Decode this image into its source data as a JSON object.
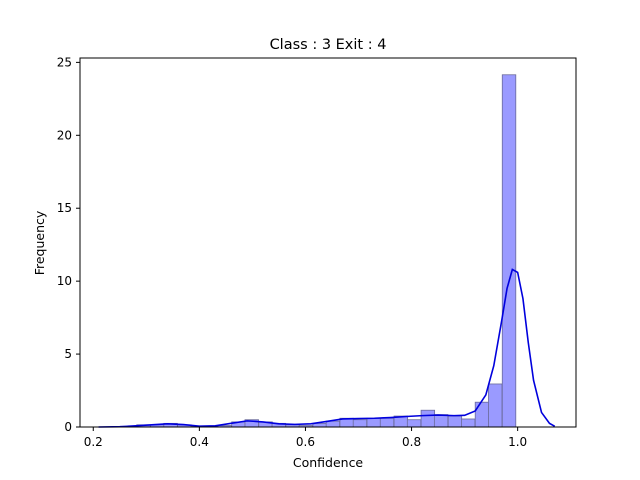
{
  "chart_data": {
    "type": "histogram",
    "title": "Class : 3 Exit : 4",
    "xlabel": "Confidence",
    "ylabel": "Frequency",
    "xlim": [
      0.175,
      1.11
    ],
    "ylim": [
      0,
      25.3
    ],
    "xticks": [
      0.2,
      0.4,
      0.6,
      0.8,
      1.0
    ],
    "xtick_labels": [
      "0.2",
      "0.4",
      "0.6",
      "0.8",
      "1.0"
    ],
    "yticks": [
      0,
      5,
      10,
      15,
      20,
      25
    ],
    "ytick_labels": [
      "0",
      "5",
      "10",
      "15",
      "20",
      "25"
    ],
    "bin_width": 0.0255,
    "bins": [
      {
        "x0": 0.282,
        "count": 0.15
      },
      {
        "x0": 0.308,
        "count": 0.15
      },
      {
        "x0": 0.333,
        "count": 0.25
      },
      {
        "x0": 0.359,
        "count": 0.15
      },
      {
        "x0": 0.384,
        "count": 0.05
      },
      {
        "x0": 0.41,
        "count": 0.05
      },
      {
        "x0": 0.435,
        "count": 0.1
      },
      {
        "x0": 0.461,
        "count": 0.35
      },
      {
        "x0": 0.486,
        "count": 0.5
      },
      {
        "x0": 0.512,
        "count": 0.35
      },
      {
        "x0": 0.537,
        "count": 0.25
      },
      {
        "x0": 0.563,
        "count": 0.15
      },
      {
        "x0": 0.588,
        "count": 0.1
      },
      {
        "x0": 0.614,
        "count": 0.25
      },
      {
        "x0": 0.639,
        "count": 0.4
      },
      {
        "x0": 0.665,
        "count": 0.6
      },
      {
        "x0": 0.69,
        "count": 0.5
      },
      {
        "x0": 0.716,
        "count": 0.6
      },
      {
        "x0": 0.741,
        "count": 0.6
      },
      {
        "x0": 0.767,
        "count": 0.75
      },
      {
        "x0": 0.792,
        "count": 0.5
      },
      {
        "x0": 0.818,
        "count": 1.15
      },
      {
        "x0": 0.843,
        "count": 0.85
      },
      {
        "x0": 0.869,
        "count": 0.75
      },
      {
        "x0": 0.894,
        "count": 0.55
      },
      {
        "x0": 0.92,
        "count": 1.7
      },
      {
        "x0": 0.945,
        "count": 2.95
      },
      {
        "x0": 0.971,
        "count": 24.15
      }
    ],
    "kde": {
      "x": [
        0.21,
        0.25,
        0.28,
        0.31,
        0.34,
        0.37,
        0.4,
        0.43,
        0.46,
        0.49,
        0.52,
        0.55,
        0.58,
        0.61,
        0.64,
        0.67,
        0.7,
        0.73,
        0.76,
        0.79,
        0.82,
        0.85,
        0.88,
        0.9,
        0.92,
        0.94,
        0.955,
        0.97,
        0.98,
        0.99,
        1.0,
        1.01,
        1.02,
        1.03,
        1.045,
        1.06,
        1.07
      ],
      "y": [
        0.0,
        0.02,
        0.08,
        0.15,
        0.22,
        0.17,
        0.06,
        0.08,
        0.25,
        0.42,
        0.35,
        0.22,
        0.18,
        0.22,
        0.38,
        0.55,
        0.58,
        0.6,
        0.65,
        0.72,
        0.78,
        0.82,
        0.78,
        0.8,
        1.1,
        2.2,
        4.2,
        7.3,
        9.5,
        10.8,
        10.6,
        8.8,
        5.8,
        3.2,
        1.0,
        0.25,
        0.05
      ]
    },
    "bar_fill": "#9a9aff",
    "bar_edge": "#6a6a9a",
    "kde_color": "#0000dd",
    "grid": false,
    "legend": "none"
  }
}
